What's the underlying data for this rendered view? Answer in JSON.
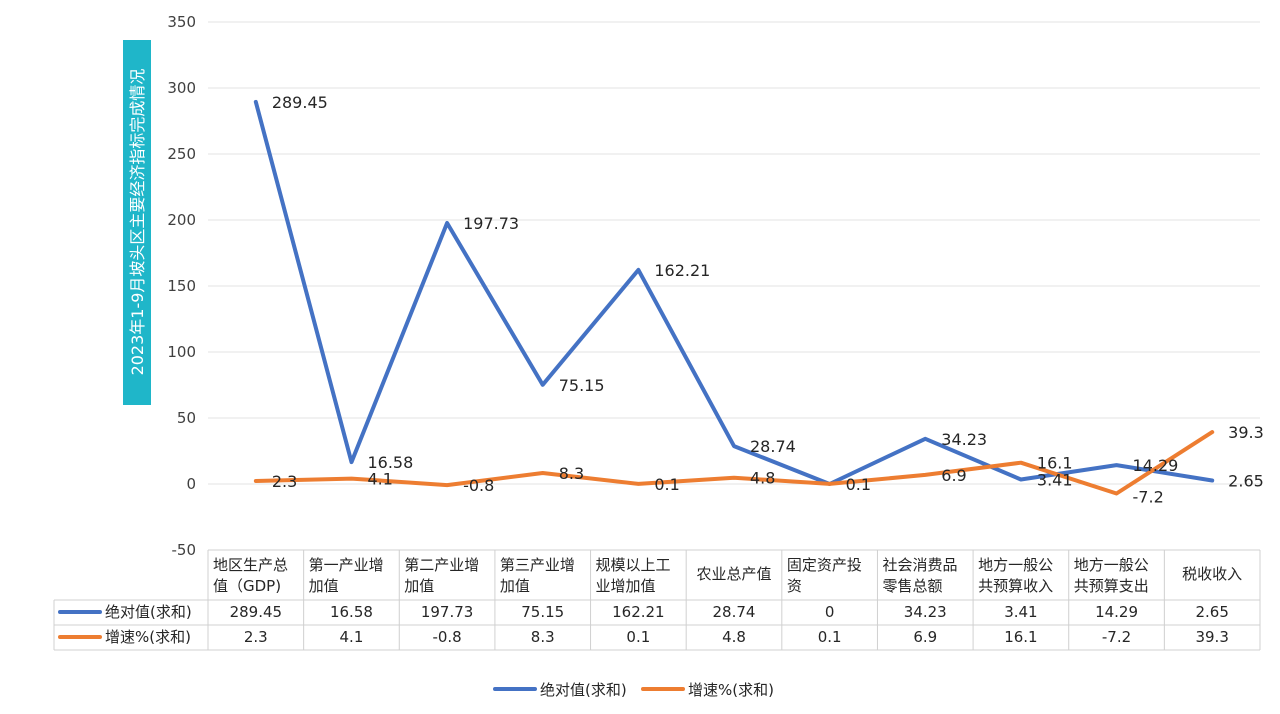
{
  "chart_data": {
    "type": "line",
    "title": "2023年1-9月坡头区主要经济指标完成情况",
    "categories": [
      [
        "地区生产总",
        "值（GDP)"
      ],
      [
        "第一产业增",
        "加值"
      ],
      [
        "第二产业增",
        "加值"
      ],
      [
        "第三产业增",
        "加值"
      ],
      [
        "规模以上工",
        "业增加值"
      ],
      [
        "农业总产值"
      ],
      [
        "固定资产投",
        "资"
      ],
      [
        "社会消费品",
        "零售总额"
      ],
      [
        "地方一般公",
        "共预算收入"
      ],
      [
        "地方一般公",
        "共预算支出"
      ],
      [
        "税收收入"
      ]
    ],
    "series": [
      {
        "name": "绝对值(求和)",
        "color": "#4472C4",
        "values": [
          289.45,
          16.58,
          197.73,
          75.15,
          162.21,
          28.74,
          0,
          34.23,
          3.41,
          14.29,
          2.65
        ],
        "labels": [
          "289.45",
          "16.58",
          "197.73",
          "75.15",
          "162.21",
          "28.74",
          "",
          "34.23",
          "3.41",
          "14.29",
          "2.65"
        ],
        "table": [
          "289.45",
          "16.58",
          "197.73",
          "75.15",
          "162.21",
          "28.74",
          "0",
          "34.23",
          "3.41",
          "14.29",
          "2.65"
        ]
      },
      {
        "name": "增速%(求和)",
        "color": "#ED7D31",
        "values": [
          2.3,
          4.1,
          -0.8,
          8.3,
          0.1,
          4.8,
          0.1,
          6.9,
          16.1,
          -7.2,
          39.3
        ],
        "labels": [
          "2.3",
          "4.1",
          "-0.8",
          "8.3",
          "0.1",
          "4.8",
          "0.1",
          "6.9",
          "16.1",
          "-7.2",
          "39.3"
        ],
        "table": [
          "2.3",
          "4.1",
          "-0.8",
          "8.3",
          "0.1",
          "4.8",
          "0.1",
          "6.9",
          "16.1",
          "-7.2",
          "39.3"
        ]
      }
    ],
    "yticks": [
      350,
      300,
      250,
      200,
      150,
      100,
      50,
      0,
      -50
    ],
    "ylim": [
      -50,
      350
    ],
    "grid": true,
    "data_table": true,
    "legend_position": "bottom"
  }
}
